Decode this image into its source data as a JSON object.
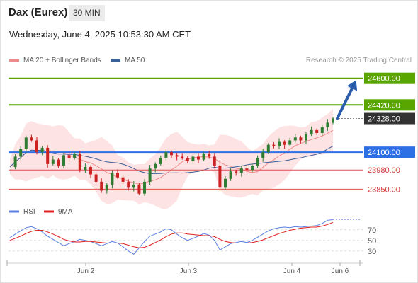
{
  "header": {
    "instrument": "Dax (Eurex)",
    "timeframe": "30 MIN"
  },
  "datetime": "Wednesday, June 4, 2025 10:53:30 AM CET",
  "legend": [
    {
      "label": "MA 20 + Bollinger Bands",
      "color": "#f08a8a"
    },
    {
      "label": "MA 50",
      "color": "#3a5f9a"
    }
  ],
  "copyright": "Research © 2025 Trading Central",
  "colors": {
    "target": "#5aa600",
    "resistance_current": "#333333",
    "pivot": "#2f6fe6",
    "support": "#e05050",
    "bull": "#2e7d32",
    "bear": "#cc2222",
    "ma20": "#f08a8a",
    "ma50": "#3a5f9a",
    "band_fill": "#fde3e3",
    "arrow": "#2a5cab",
    "rsi": "#5b7fe0",
    "rsi_ma": "#e02020"
  },
  "chart_data": [
    {
      "type": "candlestick",
      "ylim": [
        23780,
        24680
      ],
      "x_labels": [
        "Jun 2",
        "Jun 3",
        "Jun 4",
        "Jun 6"
      ],
      "levels": [
        {
          "value": 24600.0,
          "label": "24600.00",
          "kind": "target"
        },
        {
          "value": 24420.0,
          "label": "24420.00",
          "kind": "target"
        },
        {
          "value": 24328.0,
          "label": "24328.00",
          "kind": "current"
        },
        {
          "value": 24100.0,
          "label": "24100.00",
          "kind": "pivot"
        },
        {
          "value": 23980.0,
          "label": "23980.00",
          "kind": "support"
        },
        {
          "value": 23850.0,
          "label": "23850.00",
          "kind": "support"
        }
      ],
      "close_path": [
        24000,
        24070,
        24120,
        24200,
        24180,
        24100,
        24130,
        24020,
        24050,
        24010,
        24080,
        24060,
        24090,
        23980,
        24000,
        23950,
        23900,
        23840,
        23880,
        23960,
        23930,
        23900,
        23860,
        23880,
        23820,
        23900,
        23990,
        24020,
        24060,
        24100,
        24080,
        24070,
        24060,
        24040,
        24070,
        24050,
        24090,
        24070,
        24010,
        23860,
        23920,
        23970,
        23960,
        23990,
        23980,
        24010,
        24060,
        24100,
        24150,
        24140,
        24170,
        24150,
        24180,
        24200,
        24180,
        24220,
        24250,
        24230,
        24270,
        24300,
        24328
      ],
      "projection": {
        "from": 24328,
        "to": 24600
      },
      "series": [
        {
          "name": "MA 20 + Bollinger Bands"
        },
        {
          "name": "MA 50"
        }
      ]
    },
    {
      "type": "line",
      "ylim": [
        15,
        95
      ],
      "y_ticks": [
        "70",
        "50",
        "30"
      ],
      "series": [
        {
          "name": "RSI",
          "values": [
            55,
            62,
            68,
            74,
            76,
            72,
            66,
            58,
            52,
            46,
            40,
            44,
            48,
            52,
            50,
            48,
            44,
            40,
            44,
            48,
            45,
            38,
            30,
            24,
            36,
            48,
            58,
            62,
            66,
            72,
            70,
            62,
            55,
            50,
            54,
            58,
            63,
            60,
            50,
            32,
            38,
            44,
            46,
            48,
            46,
            50,
            56,
            62,
            68,
            72,
            74,
            75,
            74,
            76,
            75,
            76,
            77,
            78,
            82,
            88,
            89
          ]
        },
        {
          "name": "9MA",
          "values": [
            50,
            54,
            58,
            63,
            67,
            69,
            69,
            66,
            62,
            57,
            52,
            49,
            47,
            47,
            48,
            48,
            47,
            46,
            45,
            45,
            45,
            44,
            41,
            38,
            36,
            37,
            41,
            46,
            51,
            57,
            62,
            64,
            64,
            62,
            61,
            60,
            59,
            59,
            57,
            52,
            48,
            46,
            45,
            45,
            45,
            46,
            48,
            51,
            55,
            59,
            63,
            66,
            69,
            71,
            73,
            74,
            75,
            75,
            77,
            80,
            84
          ]
        }
      ]
    }
  ]
}
